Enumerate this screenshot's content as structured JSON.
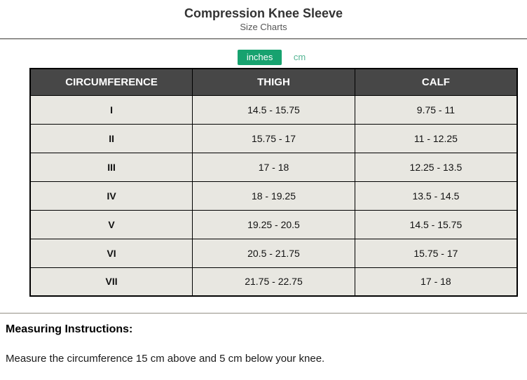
{
  "page": {
    "title": "Compression Knee Sleeve",
    "subtitle": "Size Charts"
  },
  "unit_toggle": {
    "options": [
      {
        "label": "inches",
        "active": true
      },
      {
        "label": "cm",
        "active": false
      }
    ],
    "active_bg_color": "#17a26f",
    "inactive_text_color": "#55b694"
  },
  "size_chart": {
    "header_bg_color": "#474747",
    "row_bg_color": "#e8e7e1",
    "columns": [
      "CIRCUMFERENCE",
      "THIGH",
      "CALF"
    ],
    "unit_shown": "inches",
    "rows": [
      {
        "size": "I",
        "thigh": "14.5 - 15.75",
        "calf": "9.75 - 11"
      },
      {
        "size": "II",
        "thigh": "15.75 - 17",
        "calf": "11 - 12.25"
      },
      {
        "size": "III",
        "thigh": "17 - 18",
        "calf": "12.25 - 13.5"
      },
      {
        "size": "IV",
        "thigh": "18 - 19.25",
        "calf": "13.5 - 14.5"
      },
      {
        "size": "V",
        "thigh": "19.25 - 20.5",
        "calf": "14.5 - 15.75"
      },
      {
        "size": "VI",
        "thigh": "20.5 - 21.75",
        "calf": "15.75 - 17"
      },
      {
        "size": "VII",
        "thigh": "21.75 - 22.75",
        "calf": "17 - 18"
      }
    ]
  },
  "instructions": {
    "heading": "Measuring Instructions:",
    "body": "Measure the circumference 15 cm above and 5 cm below your knee."
  }
}
